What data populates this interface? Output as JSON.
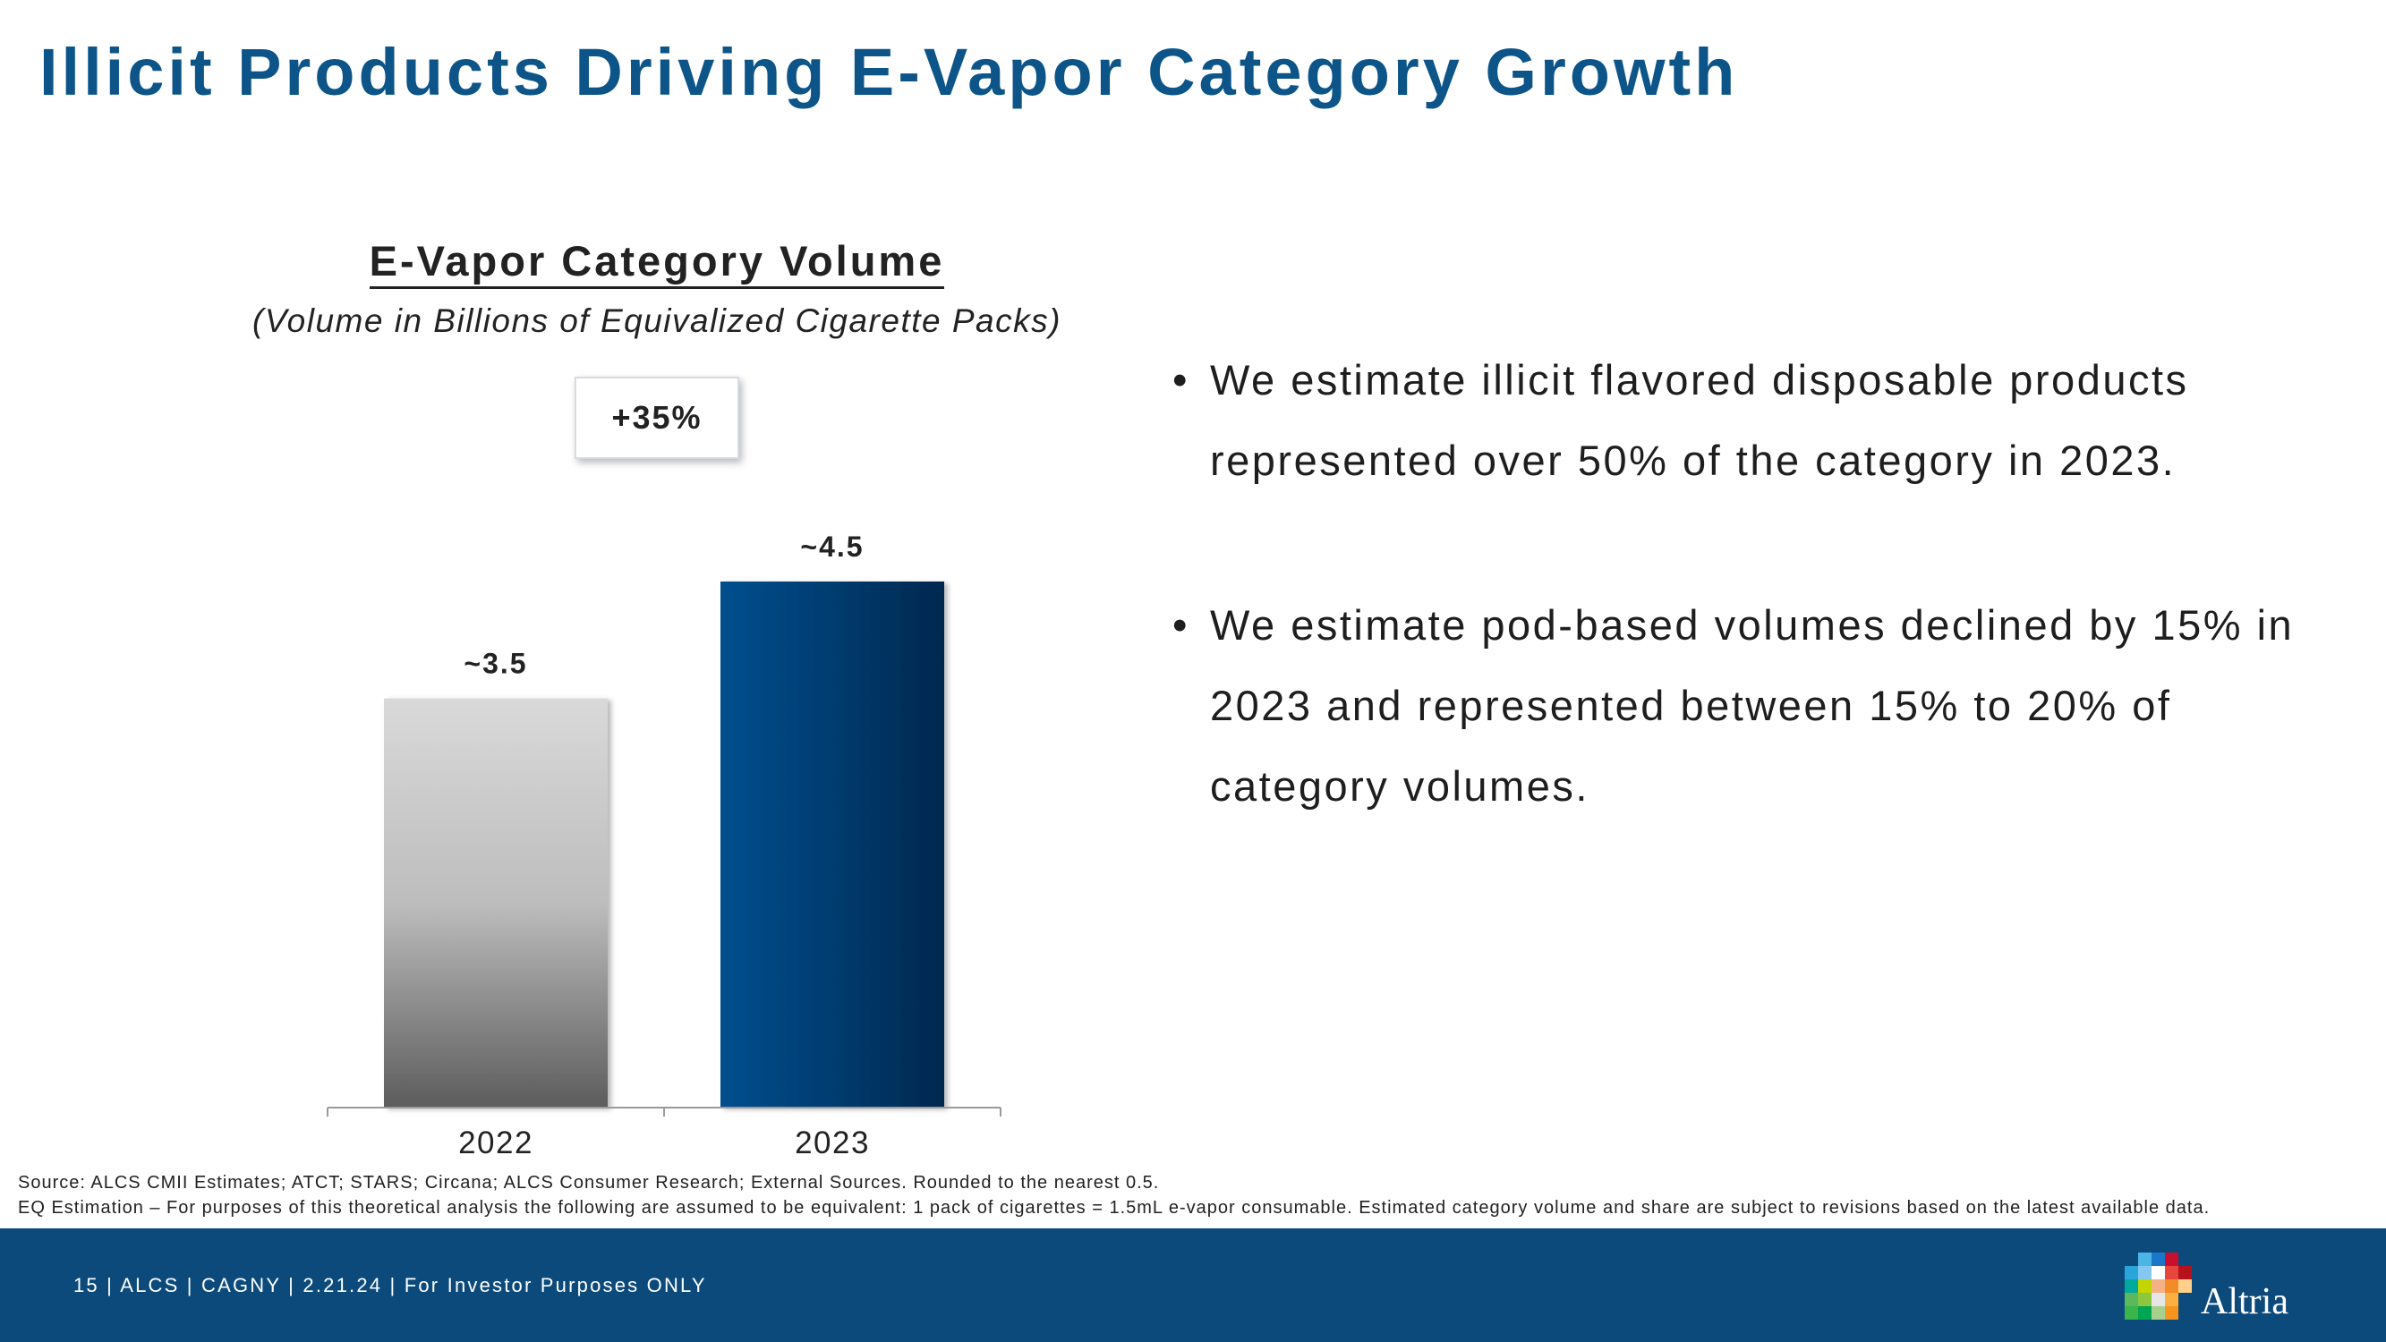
{
  "slide": {
    "title": "Illicit Products Driving E-Vapor Category Growth"
  },
  "chart_data": {
    "type": "bar",
    "title": "E-Vapor Category Volume",
    "subtitle": "(Volume in Billions of Equivalized Cigarette Packs)",
    "categories": [
      "2022",
      "2023"
    ],
    "values": [
      3.5,
      4.5
    ],
    "data_labels": [
      "~3.5",
      "~4.5"
    ],
    "growth_label": "+35%",
    "ylim": [
      0,
      5.25
    ],
    "xlabel": "",
    "ylabel": "",
    "bar_colors": [
      {
        "top": "#d9d9d9",
        "mid": "#bdbdbd",
        "bottom": "#5c5c5c"
      },
      {
        "left": "#004f8f",
        "right": "#00284f"
      }
    ],
    "grid": false
  },
  "bullets": [
    "We estimate illicit flavored disposable products represented over 50% of the category in 2023.",
    "We estimate pod-based volumes declined by 15% in 2023 and represented between 15% to 20% of category volumes."
  ],
  "bullet_glyph": "•",
  "sources": {
    "line1": "Source: ALCS CMII Estimates; ATCT; STARS; Circana; ALCS Consumer Research; External Sources. Rounded to the nearest 0.5.",
    "line2": "EQ Estimation – For purposes of this theoretical analysis the following are assumed to be equivalent: 1 pack of cigarettes = 1.5mL e-vapor consumable. Estimated category volume and share are subject to revisions based on the latest available data."
  },
  "footer": {
    "text": "15 | ALCS | CAGNY | 2.21.24 | For Investor Purposes ONLY",
    "logo_text": "Altria",
    "logo_icon": "altria-pixel-mosaic-icon"
  },
  "colors": {
    "title": "#0d5588",
    "footer_bg": "#0c4a7c"
  }
}
